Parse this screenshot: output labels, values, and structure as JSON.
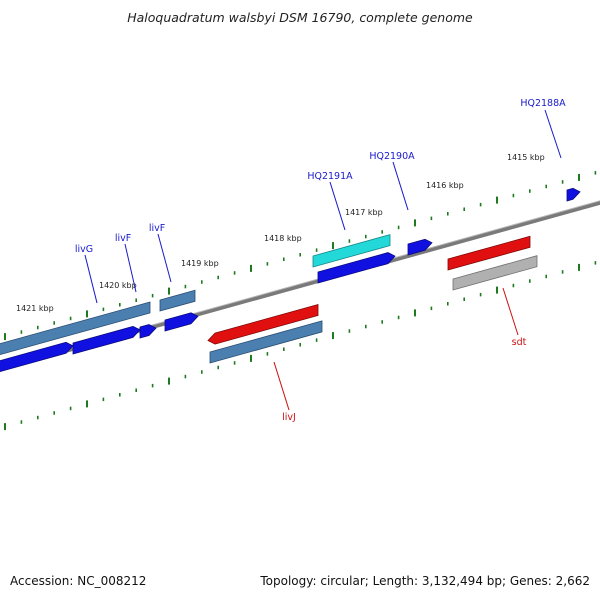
{
  "title": "Haloquadratum walsbyi DSM 16790, complete genome",
  "footer": {
    "accession": "Accession: NC_008212",
    "stats": "Topology: circular; Length: 3,132,494 bp; Genes: 2,662"
  },
  "colors": {
    "backbone": "#808080",
    "tick": "#1e7a1e",
    "gene_blue": "#1010e0",
    "gene_steel": "#4a7fb0",
    "gene_cyan": "#22d8d8",
    "gene_red": "#e01010",
    "gene_gray": "#b0b0b0",
    "label_blue": "#1a1acc",
    "label_red": "#cc1111"
  },
  "scale_labels": [
    {
      "text": "1415 kbp",
      "kbp": 1415
    },
    {
      "text": "1416 kbp",
      "kbp": 1416
    },
    {
      "text": "1417 kbp",
      "kbp": 1417
    },
    {
      "text": "1418 kbp",
      "kbp": 1418
    },
    {
      "text": "1419 kbp",
      "kbp": 1419
    },
    {
      "text": "1420 kbp",
      "kbp": 1420
    },
    {
      "text": "1421 kbp",
      "kbp": 1421
    }
  ],
  "genes": [
    {
      "label": "HQ2188A",
      "color": "blue"
    },
    {
      "label": "HQ2190A",
      "color": "blue"
    },
    {
      "label": "HQ2191A",
      "color": "cyan"
    },
    {
      "label": "livF",
      "color": "steel"
    },
    {
      "label": "livF",
      "color": "blue"
    },
    {
      "label": "livG",
      "color": "blue"
    },
    {
      "label": "livJ",
      "color": "steel"
    },
    {
      "label": "sdt",
      "color": "gray"
    }
  ]
}
